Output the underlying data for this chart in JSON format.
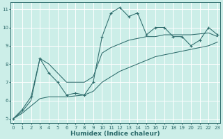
{
  "xlabel": "Humidex (Indice chaleur)",
  "x_values": [
    0,
    1,
    2,
    3,
    4,
    5,
    6,
    7,
    8,
    9,
    10,
    11,
    12,
    13,
    14,
    15,
    16,
    17,
    18,
    19,
    20,
    21,
    22,
    23
  ],
  "main_line_y": [
    5.0,
    5.5,
    6.2,
    8.3,
    7.5,
    7.0,
    6.3,
    6.4,
    6.3,
    7.0,
    9.5,
    10.8,
    11.1,
    10.6,
    10.8,
    9.6,
    10.0,
    10.0,
    9.5,
    9.5,
    9.0,
    9.3,
    10.0,
    9.6
  ],
  "upper_bound_y": [
    5.0,
    5.4,
    6.0,
    8.3,
    8.0,
    7.5,
    7.0,
    7.0,
    7.0,
    7.3,
    8.6,
    8.9,
    9.1,
    9.3,
    9.4,
    9.5,
    9.5,
    9.6,
    9.6,
    9.6,
    9.6,
    9.65,
    9.7,
    9.5
  ],
  "lower_bound_y": [
    5.0,
    5.3,
    5.7,
    6.1,
    6.2,
    6.2,
    6.2,
    6.25,
    6.3,
    6.5,
    7.0,
    7.3,
    7.6,
    7.8,
    8.0,
    8.2,
    8.4,
    8.5,
    8.6,
    8.7,
    8.8,
    8.9,
    9.0,
    9.2
  ],
  "xlim": [
    -0.3,
    23.3
  ],
  "ylim": [
    4.75,
    11.4
  ],
  "yticks": [
    5,
    6,
    7,
    8,
    9,
    10,
    11
  ],
  "xticks": [
    0,
    1,
    2,
    3,
    4,
    5,
    6,
    7,
    8,
    9,
    10,
    11,
    12,
    13,
    14,
    15,
    16,
    17,
    18,
    19,
    20,
    21,
    22,
    23
  ],
  "line_color": "#2d6b6b",
  "bg_color": "#cceee8",
  "grid_color": "#ffffff",
  "tick_fontsize": 5.0,
  "label_fontsize": 6.5
}
